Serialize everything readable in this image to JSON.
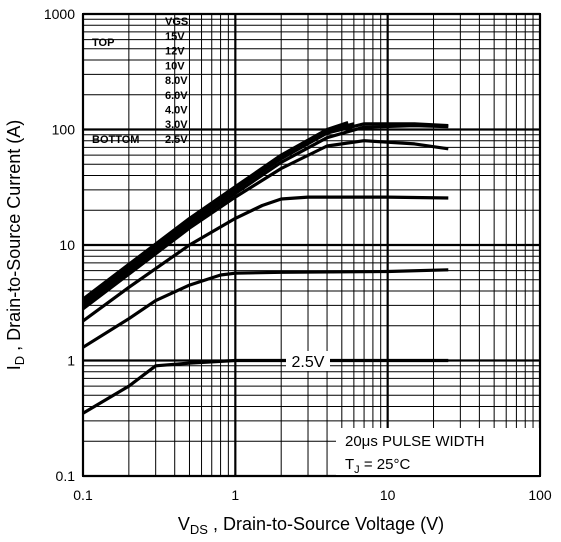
{
  "chart_data": {
    "type": "line",
    "log_x": true,
    "log_y": true,
    "grid": true,
    "minor_grid": true,
    "xlim": [
      0.1,
      100
    ],
    "ylim": [
      0.1,
      1000
    ],
    "xticks": [
      0.1,
      1,
      10,
      100
    ],
    "yticks": [
      0.1,
      1,
      10,
      100,
      1000
    ],
    "xlabel": {
      "symbol": "V",
      "subscript": "DS",
      "text": " , Drain-to-Source Voltage (V)"
    },
    "ylabel": {
      "symbol": "I",
      "subscript": "D",
      "text": " , Drain-to-Source Current (A)"
    },
    "legend": {
      "title": "VGS",
      "top_label": "TOP",
      "bottom_label": "BOTTOM",
      "position": "upper left"
    },
    "annotations": {
      "curve_label": "2.5V",
      "pulse": "20μs PULSE WIDTH",
      "temp_symbol": "T",
      "temp_subscript": "J",
      "temp_text": " = 25°C"
    },
    "series": [
      {
        "name": "15V",
        "color": "#000000",
        "x": [
          0.1,
          0.2,
          0.5,
          1,
          2,
          4,
          5.5
        ],
        "values": [
          3.4,
          6.8,
          17,
          32,
          60,
          100,
          115
        ]
      },
      {
        "name": "12V",
        "color": "#000000",
        "x": [
          0.1,
          0.2,
          0.5,
          1,
          2,
          4,
          6
        ],
        "values": [
          3.3,
          6.6,
          16.5,
          31,
          58,
          97,
          112
        ]
      },
      {
        "name": "10V",
        "color": "#000000",
        "x": [
          0.1,
          0.2,
          0.5,
          1,
          2,
          4,
          7,
          15,
          25
        ],
        "values": [
          3.2,
          6.4,
          16,
          30,
          56,
          93,
          112,
          112,
          108
        ]
      },
      {
        "name": "8.0V",
        "color": "#000000",
        "x": [
          0.1,
          0.2,
          0.5,
          1,
          2,
          4,
          7,
          15,
          25
        ],
        "values": [
          3.0,
          6.0,
          15,
          28,
          52,
          85,
          105,
          108,
          106
        ]
      },
      {
        "name": "6.0V",
        "color": "#000000",
        "x": [
          0.1,
          0.2,
          0.5,
          1,
          2,
          4,
          7,
          15,
          25
        ],
        "values": [
          2.8,
          5.6,
          14,
          26,
          46,
          72,
          80,
          75,
          68
        ]
      },
      {
        "name": "4.0V",
        "color": "#000000",
        "x": [
          0.1,
          0.2,
          0.5,
          1,
          1.5,
          2,
          3,
          10,
          25
        ],
        "values": [
          2.2,
          4.3,
          10,
          17,
          22,
          25,
          26,
          26,
          25.5
        ]
      },
      {
        "name": "3.0V",
        "color": "#000000",
        "x": [
          0.1,
          0.2,
          0.3,
          0.5,
          0.8,
          1,
          2,
          10,
          25
        ],
        "values": [
          1.3,
          2.3,
          3.3,
          4.5,
          5.5,
          5.7,
          5.8,
          5.9,
          6.1
        ]
      },
      {
        "name": "2.5V",
        "color": "#000000",
        "x": [
          0.1,
          0.2,
          0.3,
          0.5,
          1,
          25
        ],
        "values": [
          0.35,
          0.6,
          0.9,
          0.95,
          1.0,
          1.0
        ]
      }
    ]
  }
}
